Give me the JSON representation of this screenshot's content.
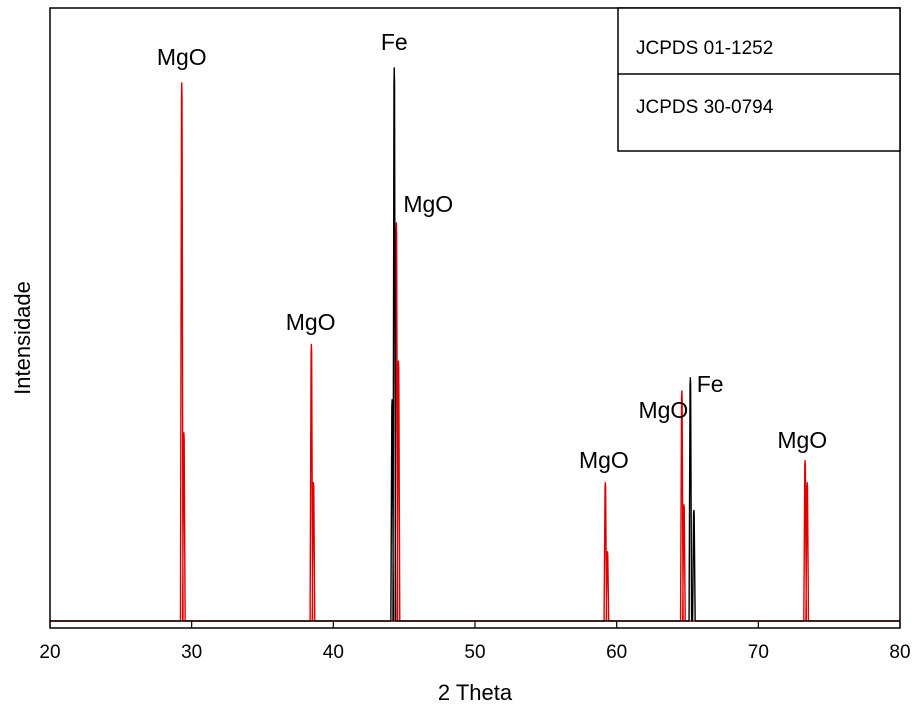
{
  "chart_data": {
    "type": "line",
    "title": "",
    "xlabel": "2 Theta",
    "ylabel": "Intensidade",
    "xlim": [
      20,
      80
    ],
    "ylim": [
      0,
      100
    ],
    "x_ticks": [
      20,
      30,
      40,
      50,
      60,
      70,
      80
    ],
    "grid": false,
    "legend": {
      "placement": "top-right",
      "entries": [
        "JCPDS 01-1252",
        "JCPDS 30-0794"
      ]
    },
    "series": [
      {
        "color": "#000000",
        "peaks": [
          {
            "x": 44.15,
            "y": 40
          },
          {
            "x": 44.3,
            "y": 100
          },
          {
            "x": 65.2,
            "y": 44
          },
          {
            "x": 65.45,
            "y": 20
          }
        ]
      },
      {
        "color": "#e00000",
        "peaks": [
          {
            "x": 29.3,
            "y": 97.3
          },
          {
            "x": 29.45,
            "y": 34
          },
          {
            "x": 38.45,
            "y": 50
          },
          {
            "x": 38.6,
            "y": 25
          },
          {
            "x": 44.45,
            "y": 72
          },
          {
            "x": 44.6,
            "y": 47
          },
          {
            "x": 59.2,
            "y": 25
          },
          {
            "x": 59.35,
            "y": 12.5
          },
          {
            "x": 64.6,
            "y": 41.6
          },
          {
            "x": 64.75,
            "y": 21
          },
          {
            "x": 73.3,
            "y": 29
          },
          {
            "x": 73.45,
            "y": 25
          }
        ]
      }
    ],
    "annotations": [
      {
        "text": "MgO",
        "x": 29.3,
        "y": 100.5
      },
      {
        "text": "Fe",
        "x": 44.3,
        "y": 103.3
      },
      {
        "text": "MgO",
        "x": 46.7,
        "y": 74
      },
      {
        "text": "MgO",
        "x": 38.4,
        "y": 52.6
      },
      {
        "text": "MgO",
        "x": 59.1,
        "y": 27.7
      },
      {
        "text": "MgO",
        "x": 63.3,
        "y": 36.7
      },
      {
        "text": "Fe",
        "x": 66.6,
        "y": 41.4
      },
      {
        "text": "MgO",
        "x": 73.1,
        "y": 31.3
      }
    ]
  }
}
